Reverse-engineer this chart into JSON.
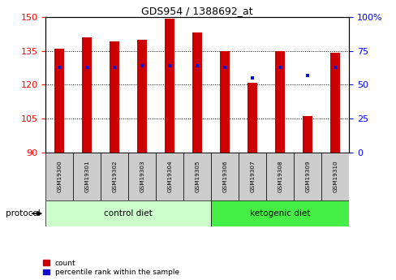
{
  "title": "GDS954 / 1388692_at",
  "samples": [
    "GSM19300",
    "GSM19301",
    "GSM19302",
    "GSM19303",
    "GSM19304",
    "GSM19305",
    "GSM19306",
    "GSM19307",
    "GSM19308",
    "GSM19309",
    "GSM19310"
  ],
  "bar_heights": [
    136,
    141,
    139,
    140,
    149,
    143,
    135,
    121,
    135,
    106,
    134
  ],
  "percentile_rank_pct": [
    63,
    63,
    63,
    64,
    64,
    64,
    63,
    55,
    63,
    57,
    63
  ],
  "ylim_left": [
    90,
    150
  ],
  "ylim_right": [
    0,
    100
  ],
  "yticks_left": [
    90,
    105,
    120,
    135,
    150
  ],
  "yticks_right": [
    0,
    25,
    50,
    75,
    100
  ],
  "bar_color": "#cc0000",
  "blue_color": "#1111cc",
  "n_control": 6,
  "n_keto": 5,
  "control_bg": "#ccffcc",
  "ketogenic_bg": "#44ee44",
  "tick_label_bg": "#cccccc",
  "protocol_label": "protocol",
  "control_label": "control diet",
  "ketogenic_label": "ketogenic diet",
  "legend_count": "count",
  "legend_percentile": "percentile rank within the sample",
  "bar_width": 0.35
}
